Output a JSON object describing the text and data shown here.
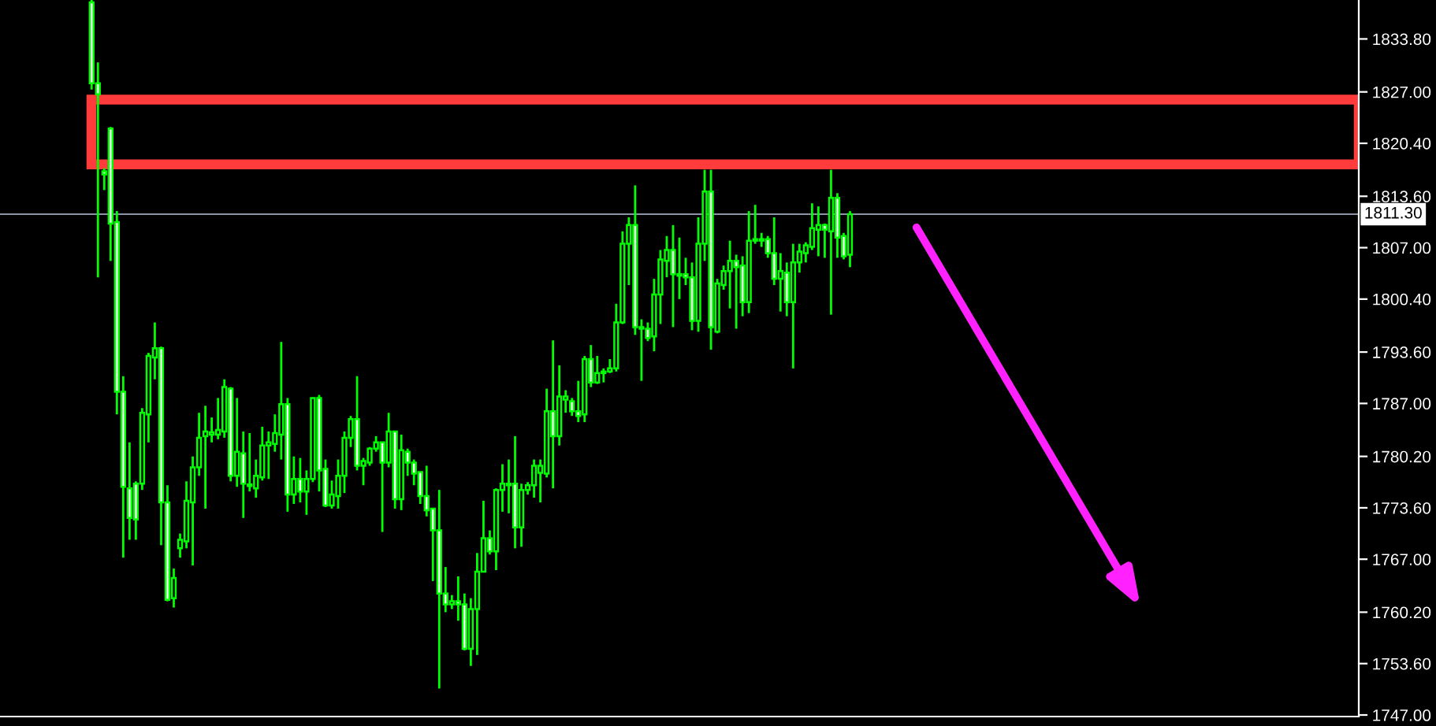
{
  "chart_data": {
    "type": "candlestick",
    "categories": [
      null,
      null,
      null,
      null,
      null,
      null,
      null,
      null,
      null,
      null,
      null,
      null,
      null,
      null,
      null,
      null,
      null,
      null,
      null,
      null,
      null,
      null,
      null,
      null,
      null,
      null,
      null,
      null,
      null,
      null,
      null,
      null,
      null,
      null,
      null,
      null,
      null,
      null,
      null,
      null,
      null,
      null,
      null,
      null,
      null,
      null,
      null,
      null,
      null,
      null,
      null,
      null,
      null,
      null,
      null,
      null,
      null,
      null,
      null,
      null,
      null,
      null,
      null,
      null,
      null,
      null,
      null,
      null,
      null,
      null,
      null,
      null,
      null,
      null,
      null,
      null,
      null,
      null,
      null,
      null,
      null,
      null,
      null,
      null,
      null,
      null,
      null,
      null,
      null,
      null,
      null,
      null,
      null,
      null,
      null,
      null,
      null,
      null,
      null,
      null,
      null,
      null,
      null,
      null,
      null,
      null,
      null,
      null,
      null,
      null,
      null,
      null,
      null,
      null,
      null,
      null,
      null,
      null,
      null,
      null,
      null,
      null,
      null,
      null,
      null,
      null,
      null,
      null,
      null,
      null,
      null,
      null,
      null,
      null,
      null,
      null,
      null,
      null,
      null,
      null,
      null,
      null,
      null,
      null,
      null,
      null,
      null,
      null,
      null,
      null,
      null,
      null,
      null,
      null,
      null,
      null,
      null,
      null,
      null,
      null,
      null,
      null,
      null,
      null,
      null,
      null,
      null,
      null,
      null,
      null,
      null,
      null,
      null,
      null,
      null,
      null,
      null,
      null,
      null,
      null,
      null,
      null,
      null,
      null,
      null,
      null,
      null,
      null,
      null,
      null,
      null,
      null,
      null,
      null,
      null,
      null,
      null,
      null,
      null,
      null,
      null,
      null,
      null,
      null,
      null,
      null,
      null,
      null,
      null,
      null,
      null,
      null,
      null,
      null,
      null
    ],
    "color": "#00ff00",
    "colors": [
      null,
      null,
      null,
      null,
      null,
      null,
      null,
      null,
      null,
      null,
      null,
      null,
      null,
      null,
      "#ffffff",
      "#ffffff",
      "#ffffff",
      "#ffffff",
      "#ffffff",
      "#ffffff",
      "#ffffff",
      "#ffffff",
      "#000000",
      "#000000",
      "#000000",
      "#ffffff",
      "#ffffff",
      "#000000",
      "#000000",
      "#000000",
      "#000000",
      "#000000",
      "#000000",
      "#000000",
      "#000000",
      "#000000",
      "#ffffff",
      "#000000",
      "#ffffff",
      "#000000",
      "#000000",
      "#000000",
      "#000000",
      "#000000",
      "#000000",
      "#ffffff",
      "#000000",
      "#ffffff",
      "#000000",
      "#000000",
      "#ffffff",
      "#ffffff",
      "#000000",
      "#000000",
      "#000000",
      "#000000",
      "#ffffff",
      "#000000",
      "#000000",
      "#000000",
      "#ffffff",
      "#000000",
      "#ffffff",
      "#000000",
      "#ffffff",
      "#ffffff",
      "#ffffff",
      "#ffffff",
      "#ffffff",
      "#ffffff",
      "#ffffff",
      "#000000",
      "#ffffff",
      "#ffffff",
      "#000000",
      "#000000",
      "#000000",
      "#ffffff",
      "#000000",
      "#000000",
      "#ffffff",
      "#ffffff",
      "#000000",
      "#000000",
      "#000000",
      "#000000",
      "#000000",
      "#ffffff",
      "#000000",
      "#000000",
      "#ffffff",
      "#ffffff",
      "#000000",
      "#ffffff",
      "#000000",
      "#000000",
      "#000000",
      "#000000",
      "#000000",
      "#000000",
      "#ffffff",
      "#ffffff",
      "#ffffff",
      "#000000",
      "#000000",
      "#000000",
      "#ffffff",
      "#ffffff",
      "#ffffff",
      "#ffffff",
      "#000000",
      "#000000",
      "#ffffff",
      "#000000",
      "#000000",
      "#000000",
      "#ffffff",
      "#ffffff",
      "#000000",
      "#000000",
      "#ffffff",
      "#ffffff",
      "#ffffff",
      "#000000",
      "#ffffff",
      "#000000",
      "#000000",
      "#000000",
      "#000000",
      "#000000",
      "#ffffff",
      "#000000",
      "#ffffff",
      "#ffffff",
      "#000000",
      null,
      null,
      null,
      null,
      null,
      null,
      null,
      null,
      null,
      null,
      null,
      null,
      null,
      null,
      null,
      null,
      null,
      null,
      null,
      null,
      null,
      null,
      null,
      null,
      null,
      null,
      null,
      null,
      null,
      null,
      null,
      null,
      null,
      null,
      null,
      null,
      null,
      null,
      null,
      null,
      null,
      null,
      null,
      null,
      null,
      null,
      null,
      null,
      null,
      null,
      null,
      null,
      null,
      null,
      null,
      null,
      null,
      null,
      null,
      null,
      null,
      null,
      null,
      null,
      null,
      null,
      null,
      null,
      null,
      null,
      null,
      null,
      null,
      null,
      null,
      null,
      null,
      null,
      null,
      null
    ],
    "ohlc": [
      null,
      null,
      null,
      null,
      null,
      null,
      null,
      null,
      null,
      null,
      null,
      null,
      null,
      null,
      [
        1838.5,
        1838.8,
        1827.3,
        1828.1
      ],
      [
        1828.1,
        1830.8,
        1803.2,
        1826.7
      ],
      [
        1816.8,
        1817.2,
        1814.4,
        1816.4
      ],
      [
        1822.3,
        1822.5,
        1805.3,
        1810.1
      ],
      [
        1810.3,
        1811.7,
        1785.6,
        1788.5
      ],
      [
        1788.5,
        1790.5,
        1767.2,
        1776.3
      ],
      [
        1776.1,
        1782.0,
        1769.5,
        1772.3
      ],
      [
        1776.7,
        1777.0,
        1769.5,
        1772.1
      ],
      [
        1776.7,
        1786.4,
        1775.9,
        1785.8
      ],
      [
        1785.6,
        1793.5,
        1782.0,
        1793.1
      ],
      [
        1792.9,
        1797.4,
        1790.1,
        1794.1
      ],
      [
        1794.1,
        1794.3,
        1768.8,
        1774.3
      ],
      [
        1774.3,
        1776.5,
        1761.6,
        1761.8
      ],
      [
        1762.0,
        1765.8,
        1760.8,
        1764.6
      ],
      [
        1768.4,
        1770.3,
        1767.2,
        1769.5
      ],
      [
        1769.3,
        1777.0,
        1768.4,
        1774.5
      ],
      [
        1774.3,
        1780.2,
        1766.2,
        1778.8
      ],
      [
        1778.8,
        1785.8,
        1777.7,
        1782.6
      ],
      [
        1782.8,
        1786.7,
        1773.5,
        1783.4
      ],
      [
        1783.0,
        1785.2,
        1782.0,
        1783.3
      ],
      [
        1783.0,
        1787.7,
        1782.4,
        1783.6
      ],
      [
        1783.4,
        1790.1,
        1782.6,
        1789.1
      ],
      [
        1788.9,
        1789.1,
        1777.0,
        1777.7
      ],
      [
        1777.7,
        1787.7,
        1776.3,
        1780.8
      ],
      [
        1780.6,
        1783.4,
        1772.3,
        1776.7
      ],
      [
        1776.4,
        1783.2,
        1775.7,
        1776.6
      ],
      [
        1776.1,
        1779.8,
        1774.9,
        1777.7
      ],
      [
        1777.5,
        1784.0,
        1777.1,
        1781.6
      ],
      [
        1781.6,
        1783.4,
        1777.3,
        1782.0
      ],
      [
        1781.8,
        1785.6,
        1780.8,
        1783.2
      ],
      [
        1783.0,
        1794.9,
        1779.8,
        1786.9
      ],
      [
        1786.9,
        1787.7,
        1773.1,
        1775.3
      ],
      [
        1775.3,
        1780.2,
        1774.1,
        1777.3
      ],
      [
        1777.3,
        1780.0,
        1774.3,
        1775.7
      ],
      [
        1775.7,
        1778.4,
        1772.7,
        1777.3
      ],
      [
        1777.3,
        1787.7,
        1776.9,
        1787.7
      ],
      [
        1787.7,
        1788.1,
        1775.7,
        1778.4
      ],
      [
        1778.6,
        1779.8,
        1773.7,
        1773.9
      ],
      [
        1773.9,
        1777.1,
        1773.5,
        1775.3
      ],
      [
        1775.1,
        1779.8,
        1773.5,
        1777.7
      ],
      [
        1777.7,
        1783.4,
        1775.5,
        1782.6
      ],
      [
        1782.6,
        1785.4,
        1781.4,
        1785.0
      ],
      [
        1785.0,
        1790.5,
        1778.4,
        1779.0
      ],
      [
        1779.0,
        1780.0,
        1776.5,
        1779.6
      ],
      [
        1779.4,
        1781.4,
        1779.0,
        1781.2
      ],
      [
        1781.2,
        1782.8,
        1780.8,
        1782.0
      ],
      [
        1782.0,
        1782.0,
        1770.5,
        1779.4
      ],
      [
        1779.4,
        1785.8,
        1778.8,
        1783.4
      ],
      [
        1783.4,
        1783.4,
        1773.5,
        1774.7
      ],
      [
        1774.7,
        1783.0,
        1773.3,
        1781.0
      ],
      [
        1780.8,
        1781.2,
        1777.7,
        1779.4
      ],
      [
        1779.4,
        1779.8,
        1776.5,
        1778.0
      ],
      [
        1778.2,
        1778.2,
        1774.1,
        1775.1
      ],
      [
        1775.1,
        1779.0,
        1772.5,
        1773.3
      ],
      [
        1773.5,
        1773.5,
        1764.2,
        1770.7
      ],
      [
        1770.7,
        1775.9,
        1750.4,
        1762.6
      ],
      [
        1762.6,
        1766.0,
        1760.2,
        1761.2
      ],
      [
        1761.2,
        1762.4,
        1760.6,
        1761.6
      ],
      [
        1761.6,
        1764.8,
        1759.1,
        1761.2
      ],
      [
        1761.2,
        1762.6,
        1755.3,
        1755.5
      ],
      [
        1755.5,
        1762.0,
        1753.3,
        1760.6
      ],
      [
        1760.6,
        1767.8,
        1754.7,
        1765.4
      ],
      [
        1765.4,
        1774.5,
        1765.4,
        1769.7
      ],
      [
        1769.7,
        1770.7,
        1767.6,
        1768.0
      ],
      [
        1768.0,
        1776.1,
        1765.6,
        1775.9
      ],
      [
        1775.9,
        1779.2,
        1773.1,
        1776.7
      ],
      [
        1776.7,
        1779.8,
        1772.9,
        1776.5
      ],
      [
        1776.7,
        1782.8,
        1768.4,
        1771.1
      ],
      [
        1771.1,
        1776.7,
        1768.6,
        1775.9
      ],
      [
        1775.9,
        1776.9,
        1775.3,
        1776.5
      ],
      [
        1776.5,
        1779.8,
        1774.9,
        1779.0
      ],
      [
        1778.1,
        1779.8,
        1774.3,
        1779.0
      ],
      [
        1778.0,
        1788.9,
        1777.5,
        1786.0
      ],
      [
        1786.0,
        1795.1,
        1776.1,
        1782.8
      ],
      [
        1782.8,
        1791.9,
        1781.6,
        1787.9
      ],
      [
        1787.5,
        1788.7,
        1785.8,
        1787.9
      ],
      [
        1787.3,
        1787.7,
        1785.4,
        1786.0
      ],
      [
        1786.0,
        1789.9,
        1784.6,
        1785.4
      ],
      [
        1785.6,
        1793.1,
        1784.6,
        1792.7
      ],
      [
        1792.7,
        1794.5,
        1789.1,
        1789.7
      ],
      [
        1789.7,
        1793.1,
        1789.5,
        1790.9
      ],
      [
        1790.9,
        1791.5,
        1789.7,
        1791.1
      ],
      [
        1791.1,
        1792.7,
        1790.9,
        1791.5
      ],
      [
        1791.5,
        1799.8,
        1791.1,
        1797.4
      ],
      [
        1797.4,
        1809.1,
        1797.2,
        1807.5
      ],
      [
        1807.5,
        1810.9,
        1802.2,
        1809.9
      ],
      [
        1809.9,
        1815.0,
        1795.8,
        1796.8
      ],
      [
        1796.8,
        1797.8,
        1789.9,
        1796.6
      ],
      [
        1796.6,
        1797.4,
        1795.0,
        1795.4
      ],
      [
        1795.6,
        1803.0,
        1793.7,
        1801.0
      ],
      [
        1801.0,
        1806.7,
        1797.2,
        1805.5
      ],
      [
        1805.3,
        1808.5,
        1803.2,
        1806.7
      ],
      [
        1806.7,
        1809.9,
        1796.8,
        1803.6
      ],
      [
        1803.6,
        1808.3,
        1800.4,
        1803.4
      ],
      [
        1803.6,
        1805.7,
        1802.2,
        1803.2
      ],
      [
        1803.2,
        1805.1,
        1796.4,
        1797.6
      ],
      [
        1797.6,
        1810.9,
        1796.2,
        1807.5
      ],
      [
        1807.5,
        1817.0,
        1805.3,
        1814.2
      ],
      [
        1814.2,
        1817.0,
        1793.9,
        1796.8
      ],
      [
        1796.2,
        1803.0,
        1796.0,
        1802.4
      ],
      [
        1802.2,
        1804.7,
        1801.6,
        1804.0
      ],
      [
        1804.0,
        1807.9,
        1799.2,
        1805.3
      ],
      [
        1805.3,
        1806.1,
        1796.6,
        1804.5
      ],
      [
        1804.7,
        1805.9,
        1798.2,
        1800.0
      ],
      [
        1800.0,
        1811.7,
        1798.6,
        1807.9
      ],
      [
        1807.9,
        1812.5,
        1807.5,
        1808.1
      ],
      [
        1808.1,
        1808.9,
        1807.1,
        1807.9
      ],
      [
        1808.1,
        1808.5,
        1805.7,
        1806.3
      ],
      [
        1806.3,
        1810.9,
        1802.2,
        1803.0
      ],
      [
        1803.0,
        1806.3,
        1798.8,
        1804.0
      ],
      [
        1803.8,
        1805.1,
        1798.2,
        1800.0
      ],
      [
        1800.0,
        1807.5,
        1791.5,
        1805.1
      ],
      [
        1805.1,
        1807.5,
        1803.8,
        1806.5
      ],
      [
        1806.3,
        1807.7,
        1805.1,
        1807.3
      ],
      [
        1807.1,
        1812.7,
        1806.7,
        1809.5
      ],
      [
        1809.3,
        1812.3,
        1805.9,
        1809.9
      ],
      [
        1809.9,
        1810.1,
        1805.7,
        1809.3
      ],
      [
        1809.1,
        1817.0,
        1798.4,
        1813.4
      ],
      [
        1813.4,
        1814.0,
        1805.7,
        1808.3
      ],
      [
        1808.5,
        1808.9,
        1805.5,
        1805.9
      ],
      [
        1806.1,
        1811.7,
        1804.5,
        1811.3
      ],
      null,
      null,
      null,
      null,
      null,
      null,
      null,
      null,
      null,
      null,
      null,
      null,
      null,
      null,
      null,
      null,
      null,
      null,
      null,
      null,
      null,
      null,
      null,
      null,
      null,
      null,
      null,
      null,
      null,
      null,
      null,
      null,
      null,
      null,
      null,
      null,
      null,
      null,
      null,
      null,
      null,
      null,
      null,
      null,
      null,
      null,
      null,
      null,
      null,
      null,
      null,
      null,
      null,
      null,
      null,
      null,
      null,
      null,
      null,
      null,
      null,
      null,
      null,
      null,
      null,
      null,
      null,
      null,
      null,
      null,
      null,
      null,
      null,
      null,
      null,
      null,
      null,
      null,
      null,
      null
    ],
    "ylim": [
      1746.8,
      1838.8
    ],
    "yticks": [
      {
        "value": 1747.0,
        "label": "1747.00"
      },
      {
        "value": 1753.6,
        "label": "1753.60"
      },
      {
        "value": 1760.2,
        "label": "1760.20"
      },
      {
        "value": 1767.0,
        "label": "1767.00"
      },
      {
        "value": 1773.6,
        "label": "1773.60"
      },
      {
        "value": 1780.2,
        "label": "1780.20"
      },
      {
        "value": 1787.0,
        "label": "1787.00"
      },
      {
        "value": 1793.6,
        "label": "1793.60"
      },
      {
        "value": 1800.4,
        "label": "1800.40"
      },
      {
        "value": 1807.0,
        "label": "1807.00"
      },
      {
        "value": 1813.6,
        "label": "1813.60"
      },
      {
        "value": 1820.4,
        "label": "1820.40"
      },
      {
        "value": 1827.0,
        "label": "1827.00"
      },
      {
        "value": 1833.8,
        "label": "1833.80"
      }
    ],
    "ref_lines": [
      {
        "axis": "y",
        "value": 1811.3,
        "label": "1811.30",
        "color": "#8a93a8",
        "line_style": "solid"
      }
    ],
    "bands": [
      {
        "axis": "y",
        "from": 1817.7,
        "to": 1826.0,
        "color": "#ff3b3b"
      }
    ],
    "tick_labels": "y",
    "grid": false,
    "legend": false
  }
}
